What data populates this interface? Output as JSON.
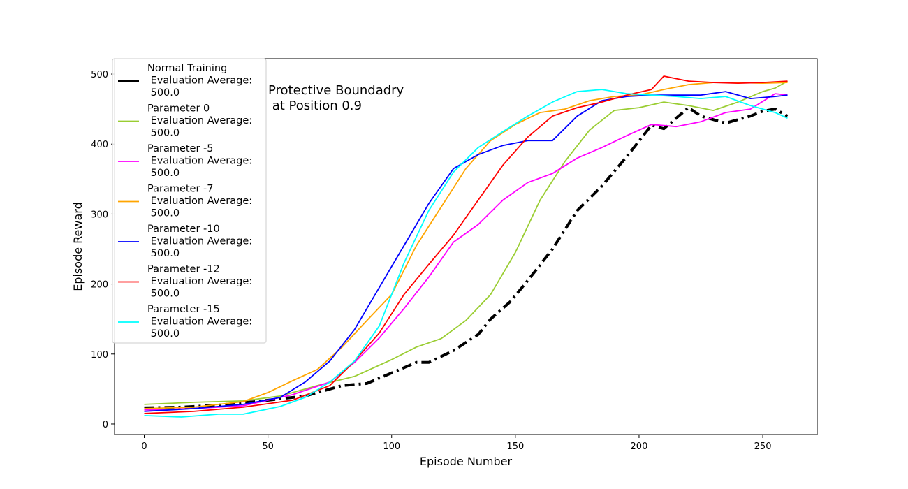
{
  "chart_data": {
    "type": "line",
    "title": "",
    "annotation": "Protective Boundadry\n at Position 0.9",
    "xlabel": "Episode Number",
    "ylabel": "Episode Reward",
    "xlim": [
      -12,
      272
    ],
    "ylim": [
      -15,
      522
    ],
    "xticks": [
      0,
      50,
      100,
      150,
      200,
      250
    ],
    "yticks": [
      0,
      100,
      200,
      300,
      400,
      500
    ],
    "grid": false,
    "legend_position": "upper-left",
    "series": [
      {
        "name": "Normal Training\n Evaluation Average:\n 500.0",
        "color": "#000000",
        "style": "dashdot",
        "width": 4,
        "points": [
          [
            0,
            23
          ],
          [
            15,
            24
          ],
          [
            30,
            27
          ],
          [
            45,
            32
          ],
          [
            55,
            36
          ],
          [
            65,
            40
          ],
          [
            75,
            50
          ],
          [
            80,
            55
          ],
          [
            90,
            58
          ],
          [
            100,
            73
          ],
          [
            110,
            88
          ],
          [
            115,
            88
          ],
          [
            125,
            105
          ],
          [
            135,
            128
          ],
          [
            140,
            150
          ],
          [
            148,
            175
          ],
          [
            155,
            205
          ],
          [
            165,
            250
          ],
          [
            175,
            305
          ],
          [
            185,
            340
          ],
          [
            195,
            382
          ],
          [
            205,
            427
          ],
          [
            210,
            422
          ],
          [
            220,
            452
          ],
          [
            225,
            440
          ],
          [
            235,
            430
          ],
          [
            245,
            440
          ],
          [
            250,
            447
          ],
          [
            255,
            450
          ],
          [
            260,
            440
          ]
        ]
      },
      {
        "name": "Parameter 0\n Evaluation Average:\n 500.0",
        "color": "#9acd32",
        "style": "solid",
        "width": 1.8,
        "points": [
          [
            0,
            28
          ],
          [
            20,
            31
          ],
          [
            40,
            33
          ],
          [
            55,
            40
          ],
          [
            70,
            55
          ],
          [
            85,
            68
          ],
          [
            100,
            92
          ],
          [
            110,
            110
          ],
          [
            120,
            122
          ],
          [
            130,
            148
          ],
          [
            140,
            185
          ],
          [
            150,
            245
          ],
          [
            160,
            320
          ],
          [
            170,
            375
          ],
          [
            180,
            420
          ],
          [
            190,
            448
          ],
          [
            200,
            452
          ],
          [
            210,
            460
          ],
          [
            220,
            455
          ],
          [
            230,
            448
          ],
          [
            240,
            460
          ],
          [
            250,
            475
          ],
          [
            255,
            480
          ],
          [
            260,
            490
          ]
        ]
      },
      {
        "name": "Parameter -5\n Evaluation Average:\n 500.0",
        "color": "#ff00ff",
        "style": "solid",
        "width": 1.8,
        "points": [
          [
            0,
            20
          ],
          [
            20,
            22
          ],
          [
            40,
            26
          ],
          [
            60,
            42
          ],
          [
            75,
            60
          ],
          [
            85,
            88
          ],
          [
            95,
            123
          ],
          [
            105,
            165
          ],
          [
            115,
            210
          ],
          [
            125,
            260
          ],
          [
            135,
            285
          ],
          [
            145,
            320
          ],
          [
            155,
            345
          ],
          [
            165,
            358
          ],
          [
            175,
            380
          ],
          [
            185,
            395
          ],
          [
            195,
            412
          ],
          [
            205,
            428
          ],
          [
            215,
            425
          ],
          [
            225,
            432
          ],
          [
            235,
            445
          ],
          [
            245,
            450
          ],
          [
            255,
            472
          ],
          [
            260,
            470
          ]
        ]
      },
      {
        "name": "Parameter -7\n Evaluation Average:\n 500.0",
        "color": "#ffa500",
        "style": "solid",
        "width": 1.8,
        "points": [
          [
            0,
            22
          ],
          [
            20,
            24
          ],
          [
            40,
            32
          ],
          [
            50,
            45
          ],
          [
            60,
            62
          ],
          [
            70,
            78
          ],
          [
            80,
            110
          ],
          [
            90,
            148
          ],
          [
            100,
            185
          ],
          [
            110,
            255
          ],
          [
            120,
            310
          ],
          [
            130,
            365
          ],
          [
            140,
            405
          ],
          [
            150,
            428
          ],
          [
            160,
            445
          ],
          [
            170,
            450
          ],
          [
            180,
            462
          ],
          [
            190,
            468
          ],
          [
            200,
            470
          ],
          [
            210,
            478
          ],
          [
            220,
            485
          ],
          [
            230,
            488
          ],
          [
            240,
            488
          ],
          [
            250,
            487
          ],
          [
            260,
            488
          ]
        ]
      },
      {
        "name": "Parameter -10\n Evaluation Average:\n 500.0",
        "color": "#0000ff",
        "style": "solid",
        "width": 1.8,
        "points": [
          [
            0,
            18
          ],
          [
            20,
            22
          ],
          [
            40,
            28
          ],
          [
            55,
            38
          ],
          [
            65,
            60
          ],
          [
            75,
            90
          ],
          [
            85,
            135
          ],
          [
            95,
            195
          ],
          [
            105,
            255
          ],
          [
            115,
            315
          ],
          [
            125,
            365
          ],
          [
            135,
            385
          ],
          [
            145,
            398
          ],
          [
            155,
            405
          ],
          [
            165,
            405
          ],
          [
            175,
            440
          ],
          [
            185,
            462
          ],
          [
            195,
            468
          ],
          [
            205,
            470
          ],
          [
            215,
            470
          ],
          [
            225,
            470
          ],
          [
            235,
            475
          ],
          [
            245,
            465
          ],
          [
            255,
            468
          ],
          [
            260,
            470
          ]
        ]
      },
      {
        "name": "Parameter -12\n Evaluation Average:\n 500.0",
        "color": "#ff0000",
        "style": "solid",
        "width": 1.8,
        "points": [
          [
            0,
            15
          ],
          [
            20,
            18
          ],
          [
            40,
            24
          ],
          [
            60,
            34
          ],
          [
            75,
            55
          ],
          [
            85,
            90
          ],
          [
            95,
            130
          ],
          [
            105,
            185
          ],
          [
            115,
            228
          ],
          [
            125,
            270
          ],
          [
            135,
            320
          ],
          [
            145,
            370
          ],
          [
            155,
            410
          ],
          [
            165,
            440
          ],
          [
            175,
            452
          ],
          [
            185,
            460
          ],
          [
            195,
            470
          ],
          [
            205,
            478
          ],
          [
            210,
            497
          ],
          [
            220,
            490
          ],
          [
            230,
            488
          ],
          [
            240,
            487
          ],
          [
            250,
            488
          ],
          [
            260,
            490
          ]
        ]
      },
      {
        "name": "Parameter -15\n Evaluation Average:\n 500.0",
        "color": "#00ffff",
        "style": "solid",
        "width": 1.8,
        "points": [
          [
            0,
            12
          ],
          [
            15,
            10
          ],
          [
            30,
            14
          ],
          [
            40,
            14
          ],
          [
            55,
            25
          ],
          [
            65,
            38
          ],
          [
            75,
            60
          ],
          [
            85,
            90
          ],
          [
            95,
            140
          ],
          [
            105,
            230
          ],
          [
            115,
            305
          ],
          [
            125,
            360
          ],
          [
            135,
            395
          ],
          [
            145,
            418
          ],
          [
            155,
            440
          ],
          [
            165,
            460
          ],
          [
            175,
            475
          ],
          [
            185,
            478
          ],
          [
            195,
            472
          ],
          [
            205,
            470
          ],
          [
            215,
            468
          ],
          [
            225,
            465
          ],
          [
            235,
            468
          ],
          [
            245,
            455
          ],
          [
            255,
            445
          ],
          [
            260,
            437
          ]
        ]
      }
    ]
  }
}
